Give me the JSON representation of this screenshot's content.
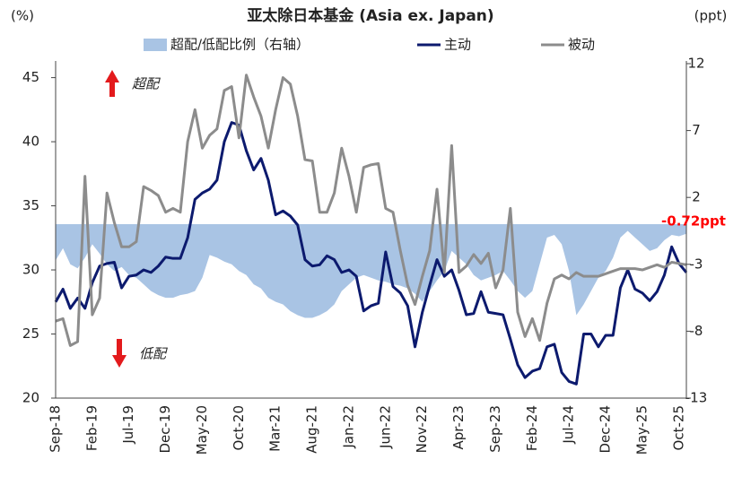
{
  "chart_data": {
    "type": "line",
    "title": "亚太除日本基金 (Asia ex. Japan)",
    "y_label": "(%)",
    "y2_label": "(ppt)",
    "categories": [
      "Sep-18",
      null,
      null,
      null,
      null,
      "Feb-19",
      null,
      null,
      null,
      null,
      "Jul-19",
      null,
      null,
      null,
      null,
      "Dec-19",
      null,
      null,
      null,
      null,
      "May-20",
      null,
      null,
      null,
      null,
      "Oct-20",
      null,
      null,
      null,
      null,
      "Mar-21",
      null,
      null,
      null,
      null,
      "Aug-21",
      null,
      null,
      null,
      null,
      "Jan-22",
      null,
      null,
      null,
      null,
      "Jun-22",
      null,
      null,
      null,
      null,
      "Nov-22",
      null,
      null,
      null,
      null,
      "Apr-23",
      null,
      null,
      null,
      null,
      "Sep-23",
      null,
      null,
      null,
      null,
      "Feb-24",
      null,
      null,
      null,
      null,
      "Jul-24",
      null,
      null,
      null,
      null,
      "Dec-24",
      null,
      null,
      null,
      null,
      "May-25",
      null,
      null,
      null,
      null,
      "Oct-25",
      null
    ],
    "ylim": [
      20,
      46.3
    ],
    "yticks": [
      20,
      25,
      30,
      35,
      40,
      45
    ],
    "y2lim": [
      -13,
      12.2
    ],
    "y2ticks": [
      -13,
      -8,
      -3,
      2,
      7,
      12
    ],
    "series": [
      {
        "name": "超配/低配比例（右轴）",
        "type": "area",
        "color": "#a9c4e4",
        "axis": "y2",
        "values": [
          -2.7,
          -1.8,
          -3.0,
          -3.3,
          -2.5,
          -1.5,
          -2.2,
          -3.0,
          -3.5,
          -3.2,
          -3.8,
          -4.0,
          -4.5,
          -5.0,
          -5.3,
          -5.5,
          -5.5,
          -5.3,
          -5.2,
          -5.0,
          -4.0,
          -2.3,
          -2.5,
          -2.8,
          -3.0,
          -3.5,
          -3.8,
          -4.5,
          -4.8,
          -5.5,
          -5.8,
          -6.0,
          -6.5,
          -6.8,
          -7.0,
          -7.0,
          -6.8,
          -6.5,
          -6.0,
          -5.0,
          -4.5,
          -4.0,
          -3.8,
          -4.0,
          -4.2,
          -4.3,
          -4.5,
          -4.6,
          -4.8,
          -5.2,
          -5.8,
          -5.0,
          -4.2,
          -3.5,
          -2.0,
          -2.5,
          -3.0,
          -3.8,
          -4.2,
          -4.0,
          -3.8,
          -3.5,
          -4.2,
          -5.0,
          -5.5,
          -5.0,
          -3.0,
          -1.0,
          -0.8,
          -1.5,
          -3.5,
          -6.8,
          -6.0,
          -5.0,
          -4.0,
          -3.5,
          -2.5,
          -1.0,
          -0.5,
          -1.0,
          -1.5,
          -2.0,
          -1.8,
          -1.2,
          -0.8,
          -0.9,
          -0.72
        ],
        "value_labels": [
          null,
          null,
          null,
          null,
          null,
          null,
          null,
          null,
          null,
          null,
          null,
          null,
          null,
          null,
          null,
          null,
          null,
          null,
          null,
          null,
          null,
          null,
          null,
          null,
          null,
          null,
          null,
          null,
          null,
          null,
          null,
          null,
          null,
          null,
          null,
          null,
          null,
          null,
          null,
          null,
          null,
          null,
          null,
          null,
          null,
          null,
          null,
          null,
          null,
          null,
          null,
          null,
          null,
          null,
          null,
          null,
          null,
          null,
          null,
          null,
          null,
          null,
          null,
          null,
          null,
          null,
          null,
          null,
          null,
          null,
          null,
          null,
          null,
          null,
          null,
          null,
          null,
          null,
          null,
          null,
          null,
          null,
          null,
          null,
          null,
          null,
          "-0.72ppt"
        ],
        "label_color": "#ff0000"
      },
      {
        "name": "主动",
        "color": "#0c1a6e",
        "values": [
          27.5,
          28.5,
          27,
          27.8,
          27,
          29,
          30.3,
          30.5,
          30.6,
          28.6,
          29.5,
          29.6,
          30,
          29.8,
          30.3,
          31,
          30.9,
          30.9,
          32.5,
          35.5,
          36,
          36.3,
          37,
          40,
          41.5,
          41.3,
          39.3,
          37.8,
          38.7,
          37,
          34.3,
          34.6,
          34.2,
          33.5,
          30.8,
          30.3,
          30.4,
          31.1,
          30.8,
          29.8,
          30,
          29.5,
          26.8,
          27.2,
          27.4,
          31.4,
          28.7,
          28.2,
          27.2,
          24,
          26.7,
          28.8,
          30.8,
          29.5,
          30,
          28.4,
          26.5,
          26.6,
          28.3,
          26.7,
          26.6,
          26.5,
          24.6,
          22.6,
          21.6,
          22.1,
          22.3,
          24,
          24.2,
          22,
          21.3,
          21.1,
          25,
          25,
          24,
          24.9,
          24.9,
          28.6,
          30,
          28.5,
          28.2,
          27.6,
          28.3,
          29.6,
          31.8,
          30.5,
          29.8
        ]
      },
      {
        "name": "被动",
        "color": "#8c8c8c",
        "values": [
          26,
          26.2,
          24.1,
          24.4,
          37.3,
          26.5,
          27.8,
          36,
          33.7,
          31.8,
          31.8,
          32.2,
          36.5,
          36.2,
          35.8,
          34.5,
          34.8,
          34.5,
          40,
          42.5,
          39.5,
          40.5,
          41,
          44,
          44.3,
          40.3,
          45.2,
          43.5,
          42,
          39.5,
          42.5,
          45,
          44.5,
          42,
          38.6,
          38.5,
          34.5,
          34.5,
          36,
          39.5,
          37.3,
          34.5,
          38,
          38.2,
          38.3,
          34.8,
          34.5,
          31.5,
          28.8,
          27.3,
          29.5,
          31.5,
          36.3,
          29.8,
          39.7,
          29.8,
          30.3,
          31.2,
          30.5,
          31.3,
          28.6,
          30,
          34.8,
          26.7,
          24.8,
          26.2,
          24.5,
          27.4,
          29.3,
          29.6,
          29.3,
          29.8,
          29.5,
          29.5,
          29.5,
          29.7,
          29.9,
          30.1,
          30.1,
          30.1,
          30,
          30.2,
          30.4,
          30.2,
          30.6,
          30.5,
          30.4
        ]
      }
    ],
    "annotations": [
      "超配",
      "低配"
    ]
  }
}
